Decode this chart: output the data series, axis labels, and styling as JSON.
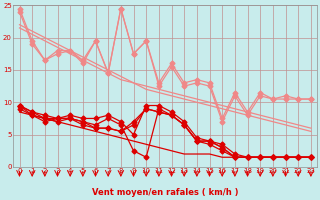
{
  "bg_color": "#c8ecec",
  "grid_color": "#c09090",
  "xlabel": "Vent moyen/en rafales ( km/h )",
  "xlim": [
    -0.5,
    23.5
  ],
  "ylim": [
    0,
    25
  ],
  "yticks": [
    0,
    5,
    10,
    15,
    20,
    25
  ],
  "xticks": [
    0,
    1,
    2,
    3,
    4,
    5,
    6,
    7,
    8,
    9,
    10,
    11,
    12,
    13,
    14,
    15,
    16,
    17,
    18,
    19,
    20,
    21,
    22,
    23
  ],
  "light_line1": [
    24.5,
    19.5,
    16.5,
    18.0,
    18.0,
    16.5,
    19.5,
    14.5,
    24.5,
    17.5,
    19.5,
    13.0,
    16.0,
    13.0,
    13.5,
    13.0,
    7.5,
    11.5,
    8.5,
    11.5,
    10.5,
    11.0,
    10.5,
    10.5
  ],
  "light_line2": [
    24.0,
    19.0,
    16.5,
    17.5,
    18.0,
    16.0,
    19.5,
    14.5,
    24.5,
    17.5,
    19.5,
    12.5,
    15.5,
    12.5,
    13.0,
    12.5,
    7.0,
    11.0,
    8.0,
    11.0,
    10.5,
    10.5,
    10.5,
    10.5
  ],
  "light_straight1": [
    22.0,
    21.0,
    20.0,
    19.0,
    18.0,
    17.0,
    16.0,
    15.0,
    14.0,
    13.0,
    12.0,
    11.5,
    11.0,
    10.5,
    10.0,
    9.5,
    9.0,
    8.5,
    8.0,
    7.5,
    7.0,
    6.5,
    6.0,
    5.5
  ],
  "light_straight2": [
    21.5,
    20.5,
    19.5,
    18.5,
    17.5,
    16.5,
    15.5,
    14.5,
    13.5,
    13.0,
    12.5,
    12.0,
    11.5,
    11.0,
    10.5,
    10.0,
    9.5,
    9.0,
    8.5,
    8.0,
    7.5,
    7.0,
    6.5,
    6.0
  ],
  "dark_line1": [
    9.5,
    8.5,
    8.0,
    7.5,
    8.0,
    7.5,
    7.5,
    8.0,
    7.0,
    5.0,
    9.5,
    9.5,
    8.5,
    7.0,
    4.5,
    4.0,
    3.5,
    2.0,
    1.5,
    1.5,
    1.5,
    1.5,
    1.5,
    1.5
  ],
  "dark_line2": [
    9.0,
    8.0,
    7.5,
    7.0,
    7.5,
    7.0,
    6.5,
    7.5,
    6.5,
    2.5,
    1.5,
    9.0,
    8.0,
    6.5,
    4.0,
    3.5,
    2.5,
    1.5,
    1.5,
    1.5,
    1.5,
    1.5,
    1.5,
    1.5
  ],
  "dark_line3": [
    9.5,
    8.0,
    7.0,
    7.5,
    7.5,
    6.5,
    6.0,
    6.0,
    5.5,
    6.5,
    9.0,
    8.5,
    8.0,
    6.5,
    4.0,
    4.0,
    3.0,
    1.5,
    1.5,
    1.5,
    1.5,
    1.5,
    1.5,
    1.5
  ],
  "dark_line4": [
    9.5,
    8.5,
    7.5,
    7.5,
    7.5,
    7.0,
    6.0,
    6.0,
    5.5,
    7.0,
    9.0,
    8.5,
    8.0,
    6.5,
    4.0,
    4.0,
    3.0,
    1.5,
    1.5,
    1.5,
    1.5,
    1.5,
    1.5,
    1.5
  ],
  "dark_straight1": [
    8.5,
    8.0,
    7.5,
    7.0,
    6.5,
    6.0,
    5.5,
    5.0,
    4.5,
    4.0,
    3.5,
    3.0,
    2.5,
    2.0,
    2.0,
    2.0,
    1.5,
    1.5,
    1.5,
    1.5,
    1.5,
    1.5,
    1.5,
    1.5
  ],
  "light_color": "#f08888",
  "dark_color": "#dd0000",
  "lw_line": 0.9,
  "lw_straight": 0.9,
  "marker_size": 2.5
}
